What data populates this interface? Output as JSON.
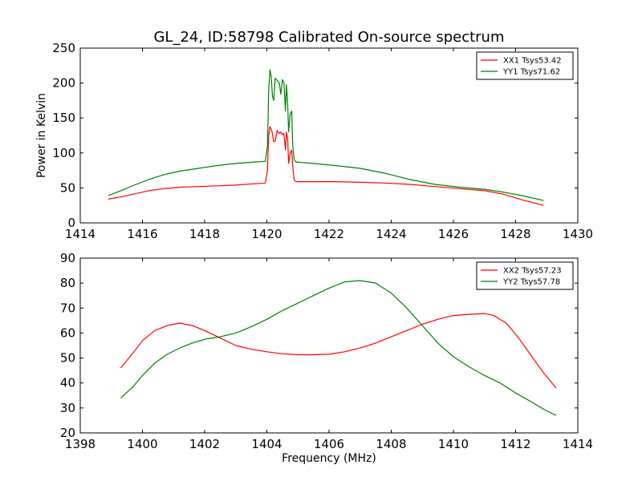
{
  "chart_data": [
    {
      "type": "line",
      "title": "GL_24, ID:58798 Calibrated On-source spectrum",
      "xlabel": "",
      "ylabel": "Power in Kelvin",
      "xlim": [
        1414,
        1430
      ],
      "ylim": [
        0,
        250
      ],
      "xticks": [
        "1414",
        "1416",
        "1418",
        "1420",
        "1422",
        "1424",
        "1426",
        "1428",
        "1430"
      ],
      "yticks": [
        "0",
        "50",
        "100",
        "150",
        "200",
        "250"
      ],
      "legend_position": "top-right",
      "series": [
        {
          "name": "XX1 Tsys53.42",
          "color": "#ff0000",
          "x": [
            1414.9,
            1415.3,
            1415.8,
            1416.2,
            1416.7,
            1417.2,
            1417.8,
            1418.4,
            1419.0,
            1419.6,
            1419.95,
            1420.02,
            1420.06,
            1420.1,
            1420.17,
            1420.22,
            1420.27,
            1420.33,
            1420.4,
            1420.45,
            1420.5,
            1420.55,
            1420.6,
            1420.63,
            1420.67,
            1420.7,
            1420.75,
            1420.8,
            1420.83,
            1420.88,
            1420.94,
            1421.5,
            1422.2,
            1423.0,
            1423.8,
            1424.6,
            1425.4,
            1426.2,
            1427.0,
            1427.6,
            1428.2,
            1428.9
          ],
          "y": [
            34,
            37,
            42,
            46,
            49,
            51,
            52,
            53,
            54,
            56,
            57,
            75,
            125,
            138,
            130,
            116,
            117,
            132,
            128,
            130,
            126,
            128,
            104,
            130,
            120,
            85,
            100,
            104,
            82,
            61,
            59,
            59,
            59,
            58,
            57,
            55,
            52,
            49,
            46,
            41,
            33,
            25
          ]
        },
        {
          "name": "YY1 Tsys71.62",
          "color": "#008000",
          "x": [
            1414.9,
            1415.3,
            1415.8,
            1416.2,
            1416.7,
            1417.2,
            1417.8,
            1418.4,
            1419.0,
            1419.6,
            1419.95,
            1420.02,
            1420.06,
            1420.1,
            1420.14,
            1420.18,
            1420.22,
            1420.27,
            1420.33,
            1420.4,
            1420.45,
            1420.5,
            1420.55,
            1420.6,
            1420.63,
            1420.67,
            1420.7,
            1420.75,
            1420.8,
            1420.83,
            1420.88,
            1420.94,
            1421.5,
            1422.2,
            1423.0,
            1423.8,
            1424.6,
            1425.4,
            1426.2,
            1427.0,
            1427.6,
            1428.2,
            1428.9
          ],
          "y": [
            39,
            46,
            55,
            62,
            69,
            74,
            78,
            82,
            85,
            87,
            88,
            110,
            190,
            219,
            210,
            182,
            175,
            207,
            204,
            200,
            184,
            205,
            200,
            160,
            198,
            170,
            130,
            155,
            160,
            112,
            90,
            87,
            85,
            82,
            78,
            71,
            62,
            55,
            51,
            48,
            44,
            39,
            32
          ]
        }
      ]
    },
    {
      "type": "line",
      "title": "",
      "xlabel": "Frequency (MHz)",
      "ylabel": "",
      "xlim": [
        1398,
        1414
      ],
      "ylim": [
        20,
        90
      ],
      "xticks": [
        "1398",
        "1400",
        "1402",
        "1404",
        "1406",
        "1408",
        "1410",
        "1412",
        "1414"
      ],
      "yticks": [
        "20",
        "30",
        "40",
        "50",
        "60",
        "70",
        "80",
        "90"
      ],
      "legend_position": "top-right",
      "series": [
        {
          "name": "XX2 Tsys57.23",
          "color": "#ff0000",
          "x": [
            1399.3,
            1399.7,
            1400.0,
            1400.4,
            1400.8,
            1401.2,
            1401.6,
            1402.0,
            1402.5,
            1403.0,
            1403.5,
            1404.0,
            1404.5,
            1405.0,
            1405.5,
            1406.0,
            1406.5,
            1407.0,
            1407.5,
            1408.0,
            1408.5,
            1409.0,
            1409.5,
            1410.0,
            1410.5,
            1411.0,
            1411.3,
            1411.7,
            1412.1,
            1412.5,
            1412.9,
            1413.3
          ],
          "y": [
            46,
            52,
            57,
            61,
            63,
            64,
            63,
            61,
            58,
            55,
            53.5,
            52.5,
            51.7,
            51.3,
            51.3,
            51.5,
            52.5,
            54,
            56,
            58.5,
            61,
            63.5,
            65.5,
            67,
            67.5,
            67.8,
            67,
            64,
            58,
            51,
            44,
            38
          ]
        },
        {
          "name": "YY2 Tsys57.78",
          "color": "#008000",
          "x": [
            1399.3,
            1399.7,
            1400.0,
            1400.4,
            1400.8,
            1401.2,
            1401.6,
            1402.0,
            1402.5,
            1403.0,
            1403.5,
            1404.0,
            1404.5,
            1405.0,
            1405.5,
            1406.0,
            1406.5,
            1407.0,
            1407.5,
            1408.0,
            1408.5,
            1409.0,
            1409.5,
            1410.0,
            1410.5,
            1411.0,
            1411.5,
            1412.0,
            1412.5,
            1412.9,
            1413.3
          ],
          "y": [
            34,
            38.5,
            43,
            48,
            51.5,
            54,
            56,
            57.5,
            58.5,
            60,
            62.5,
            65.5,
            69,
            72,
            75,
            78,
            80.5,
            81,
            80,
            76,
            70,
            63,
            56,
            50.5,
            46.5,
            43,
            40,
            36,
            32.5,
            29.5,
            27
          ]
        }
      ]
    }
  ]
}
